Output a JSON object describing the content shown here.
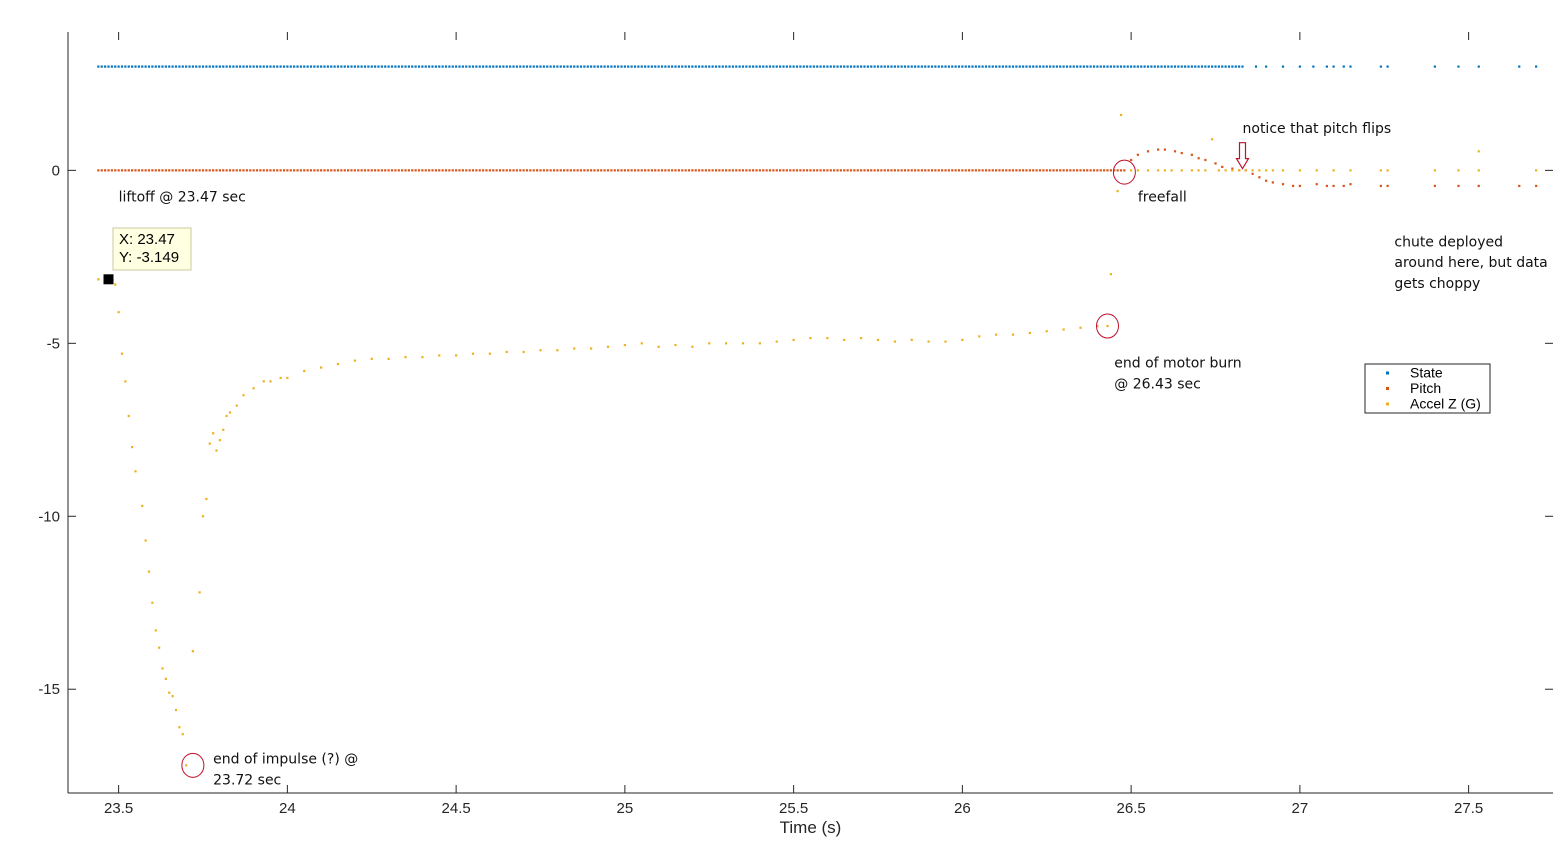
{
  "chart_data": {
    "type": "scatter",
    "xlabel": "Time (s)",
    "ylabel": "",
    "title": "",
    "xlim": [
      23.35,
      27.75
    ],
    "ylim": [
      -18.0,
      4.0
    ],
    "xticks": [
      23.5,
      24,
      24.5,
      25,
      25.5,
      26,
      26.5,
      27,
      27.5
    ],
    "xtick_labels": [
      "23.5",
      "24",
      "24.5",
      "25",
      "25.5",
      "26",
      "26.5",
      "27",
      "27.5"
    ],
    "yticks": [
      0,
      -5,
      -10,
      -15
    ],
    "ytick_labels": [
      "0",
      "-5",
      "-10",
      "-15"
    ],
    "grid": false,
    "legend_placement": "right",
    "colors": {
      "State": "#0072BD",
      "Pitch": "#D95319",
      "Accel Z (G)": "#EDB120",
      "annotation_circle": "#C0102A"
    },
    "series": [
      {
        "name": "State",
        "segments": [
          {
            "x_start": 23.44,
            "x_end": 26.83,
            "y": 3.0,
            "step": 0.01
          }
        ],
        "x": [
          26.87,
          26.9,
          26.95,
          27.0,
          27.04,
          27.08,
          27.1,
          27.13,
          27.15,
          27.24,
          27.26,
          27.4,
          27.47,
          27.53,
          27.65,
          27.7
        ],
        "y": [
          3.0,
          3.0,
          3.0,
          3.0,
          3.0,
          3.0,
          3.0,
          3.0,
          3.0,
          3.0,
          3.0,
          3.0,
          3.0,
          3.0,
          3.0,
          3.0
        ]
      },
      {
        "name": "Pitch",
        "segments": [
          {
            "x_start": 23.44,
            "x_end": 26.48,
            "y": 0.0,
            "step": 0.01
          }
        ],
        "x": [
          26.5,
          26.52,
          26.55,
          26.58,
          26.6,
          26.63,
          26.65,
          26.68,
          26.7,
          26.72,
          26.75,
          26.77,
          26.8,
          26.82,
          26.84,
          26.86,
          26.88,
          26.9,
          26.92,
          26.95,
          26.98,
          27.0,
          27.05,
          27.08,
          27.1,
          27.13,
          27.15,
          27.24,
          27.26,
          27.4,
          27.47,
          27.53,
          27.65,
          27.7
        ],
        "y": [
          0.3,
          0.45,
          0.55,
          0.6,
          0.6,
          0.55,
          0.5,
          0.45,
          0.35,
          0.3,
          0.2,
          0.1,
          0.05,
          0.0,
          0.0,
          -0.1,
          -0.2,
          -0.3,
          -0.35,
          -0.4,
          -0.45,
          -0.45,
          -0.4,
          -0.45,
          -0.45,
          -0.45,
          -0.4,
          -0.45,
          -0.45,
          -0.45,
          -0.45,
          -0.45,
          -0.45,
          -0.45
        ]
      },
      {
        "name": "Accel Z (G)",
        "x": [
          23.44,
          23.47,
          23.49,
          23.5,
          23.51,
          23.52,
          23.53,
          23.54,
          23.55,
          23.57,
          23.58,
          23.59,
          23.6,
          23.61,
          23.62,
          23.63,
          23.64,
          23.65,
          23.66,
          23.67,
          23.68,
          23.69,
          23.7,
          23.72,
          23.74,
          23.75,
          23.76,
          23.77,
          23.78,
          23.79,
          23.8,
          23.81,
          23.82,
          23.83,
          23.85,
          23.87,
          23.9,
          23.93,
          23.95,
          23.98,
          24.0,
          24.05,
          24.1,
          24.15,
          24.2,
          24.25,
          24.3,
          24.35,
          24.4,
          24.45,
          24.5,
          24.55,
          24.6,
          24.65,
          24.7,
          24.75,
          24.8,
          24.85,
          24.9,
          24.95,
          25.0,
          25.05,
          25.1,
          25.15,
          25.2,
          25.25,
          25.3,
          25.35,
          25.4,
          25.45,
          25.5,
          25.55,
          25.6,
          25.65,
          25.7,
          25.75,
          25.8,
          25.85,
          25.9,
          25.95,
          26.0,
          26.05,
          26.1,
          26.15,
          26.2,
          26.25,
          26.3,
          26.35,
          26.4,
          26.43,
          26.44,
          26.46,
          26.47,
          26.5,
          26.52,
          26.55,
          26.58,
          26.6,
          26.62,
          26.65,
          26.68,
          26.7,
          26.72,
          26.74,
          26.76,
          26.78,
          26.8,
          26.82,
          26.84,
          26.86,
          26.88,
          26.9,
          26.92,
          26.95,
          27.0,
          27.05,
          27.1,
          27.15,
          27.24,
          27.26,
          27.4,
          27.47,
          27.53,
          27.53,
          27.7
        ],
        "y": [
          -3.15,
          -3.149,
          -3.3,
          -4.1,
          -5.3,
          -6.1,
          -7.1,
          -8.0,
          -8.7,
          -9.7,
          -10.7,
          -11.6,
          -12.5,
          -13.3,
          -13.8,
          -14.4,
          -14.7,
          -15.1,
          -15.2,
          -15.6,
          -16.1,
          -16.3,
          -17.2,
          -13.9,
          -12.2,
          -10.0,
          -9.5,
          -7.9,
          -7.6,
          -8.1,
          -7.8,
          -7.5,
          -7.1,
          -7.0,
          -6.8,
          -6.5,
          -6.3,
          -6.1,
          -6.1,
          -6.0,
          -6.0,
          -5.8,
          -5.7,
          -5.6,
          -5.5,
          -5.45,
          -5.45,
          -5.4,
          -5.4,
          -5.35,
          -5.35,
          -5.3,
          -5.3,
          -5.25,
          -5.25,
          -5.2,
          -5.2,
          -5.15,
          -5.15,
          -5.1,
          -5.05,
          -5.0,
          -5.1,
          -5.05,
          -5.1,
          -5.0,
          -5.0,
          -5.0,
          -5.0,
          -4.95,
          -4.9,
          -4.85,
          -4.85,
          -4.9,
          -4.85,
          -4.9,
          -4.95,
          -4.9,
          -4.95,
          -4.95,
          -4.9,
          -4.8,
          -4.75,
          -4.75,
          -4.7,
          -4.65,
          -4.6,
          -4.55,
          -4.5,
          -4.5,
          -3.0,
          -0.6,
          1.6,
          0.0,
          0.0,
          0.0,
          0.0,
          0.0,
          0.0,
          0.0,
          0.0,
          0.0,
          0.0,
          0.9,
          0.0,
          0.0,
          0.0,
          0.0,
          0.0,
          0.0,
          0.0,
          0.0,
          0.0,
          0.0,
          0.0,
          0.0,
          0.0,
          0.0,
          0.0,
          0.0,
          0.0,
          0.0,
          0.0,
          0.55,
          0.0
        ]
      }
    ],
    "datatip": {
      "x": 23.47,
      "y": -3.149,
      "line1": "X: 23.47",
      "line2": "Y: -3.149"
    },
    "annotations": [
      {
        "text": "liftoff @ 23.47 sec",
        "x": 23.5,
        "y": -0.9
      },
      {
        "text": "freefall",
        "x": 26.52,
        "y": -0.9
      },
      {
        "text": "notice that pitch flips",
        "x": 26.83,
        "y": 1.08
      },
      {
        "text": "end of impulse (?) @",
        "x": 23.78,
        "y": -17.15
      },
      {
        "text": "23.72 sec",
        "x": 23.78,
        "y": -17.75
      },
      {
        "text": "end of motor burn",
        "x": 26.45,
        "y": -5.7
      },
      {
        "text": "@ 26.43 sec",
        "x": 26.45,
        "y": -6.3
      },
      {
        "text": "chute deployed",
        "x": 27.28,
        "y": -2.2
      },
      {
        "text": "around here, but data",
        "x": 27.28,
        "y": -2.8
      },
      {
        "text": "gets choppy",
        "x": 27.28,
        "y": -3.4
      }
    ],
    "circles": [
      {
        "x": 23.72,
        "y": -17.2
      },
      {
        "x": 26.43,
        "y": -4.5
      },
      {
        "x": 26.48,
        "y": -0.05
      }
    ],
    "arrow": {
      "x": 26.83,
      "y_top": 0.8,
      "y_bottom": 0.05
    }
  }
}
